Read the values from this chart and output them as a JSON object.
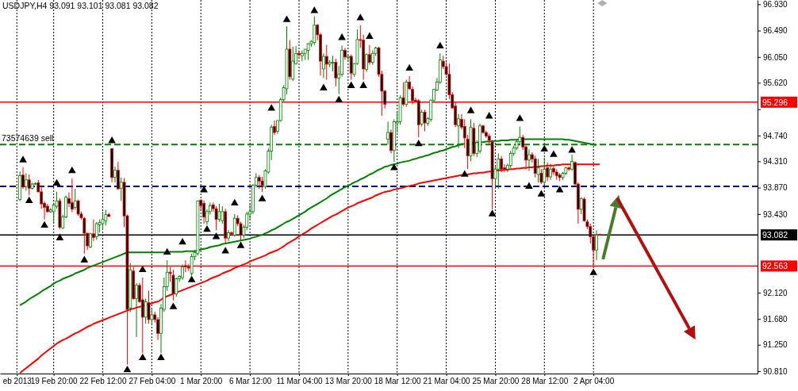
{
  "chart_data": {
    "type": "candlestick",
    "title": "USDJPY,H4  93.091 93.101 93.081 93.082",
    "categories": [
      null,
      null,
      null,
      null,
      null,
      "eb 2013",
      null,
      null,
      null,
      null,
      null,
      null,
      null,
      null,
      null,
      null,
      null,
      "19 Feb 20:00",
      null,
      null,
      null,
      null,
      null,
      null,
      null,
      null,
      null,
      null,
      null,
      null,
      null,
      null,
      null,
      "22 Feb 12:00",
      null,
      null,
      null,
      null,
      null,
      null,
      null,
      null,
      null,
      null,
      null,
      null,
      null,
      null,
      null,
      "27 Feb 04:00",
      null,
      null,
      null,
      null,
      null,
      null,
      null,
      null,
      null,
      null,
      null,
      null,
      null,
      null,
      null,
      "1 Mar 20:00",
      null,
      null,
      null,
      null,
      null,
      null,
      null,
      null,
      null,
      null,
      null,
      null,
      null,
      null,
      null,
      "6 Mar 12:00",
      null,
      null,
      null,
      null,
      null,
      null,
      null,
      null,
      null,
      null,
      null,
      null,
      null,
      null,
      null,
      "11 Mar 04:00",
      null,
      null,
      null,
      null,
      null,
      null,
      null,
      null,
      null,
      null,
      null,
      null,
      null,
      null,
      null,
      "13 Mar 20:00",
      null,
      null,
      null,
      null,
      null,
      null,
      null,
      null,
      null,
      null,
      null,
      null,
      null,
      null,
      null,
      "18 Mar 12:00",
      null,
      null,
      null,
      null,
      null,
      null,
      null,
      null,
      null,
      null,
      null,
      null,
      null,
      null,
      null,
      "21 Mar 04:00",
      null,
      null,
      null,
      null,
      null,
      null,
      null,
      null,
      null,
      null,
      null,
      null,
      null,
      null,
      null,
      "25 Mar 20:00",
      null,
      null,
      null,
      null,
      null,
      null,
      null,
      null,
      null,
      null,
      null,
      null,
      null,
      null,
      null,
      "28 Mar 12:00",
      null,
      null,
      null,
      null,
      null,
      null,
      null,
      null,
      null,
      null,
      null,
      null,
      null,
      null,
      null,
      "2 Apr 04:00",
      null,
      null,
      null,
      null,
      null,
      null,
      null,
      null,
      null,
      null,
      null,
      null,
      null,
      null,
      null,
      null,
      null,
      null,
      null,
      null,
      null,
      null,
      null,
      null,
      null,
      null,
      null,
      null,
      null,
      null,
      null,
      null,
      null,
      null,
      null,
      null,
      null,
      null,
      null,
      null,
      null,
      null,
      null,
      null,
      null,
      null,
      null,
      null,
      null,
      null,
      null,
      null,
      null
    ],
    "ohlc": [
      null,
      null,
      null,
      null,
      null,
      null,
      [
        93.67,
        94.14,
        93.65,
        94.07
      ],
      [
        94.08,
        94.21,
        93.85,
        93.88
      ],
      [
        93.89,
        94.11,
        93.82,
        94.0
      ],
      [
        94.0,
        94.09,
        93.74,
        93.86
      ],
      [
        93.86,
        93.95,
        93.84,
        93.93
      ],
      [
        93.93,
        93.96,
        93.92,
        93.94
      ],
      [
        93.95,
        94.0,
        93.8,
        93.8
      ],
      [
        93.8,
        93.91,
        93.52,
        93.6
      ],
      [
        93.61,
        93.64,
        93.34,
        93.54
      ],
      [
        93.56,
        93.6,
        93.45,
        93.47
      ],
      [
        93.47,
        93.53,
        93.45,
        93.5
      ],
      [
        93.47,
        93.62,
        93.27,
        93.58
      ],
      [
        93.56,
        93.8,
        93.52,
        93.65
      ],
      [
        93.65,
        93.69,
        93.18,
        93.21
      ],
      [
        93.2,
        93.42,
        93.18,
        93.38
      ],
      [
        93.38,
        93.74,
        93.36,
        93.71
      ],
      [
        93.69,
        93.79,
        93.55,
        93.61
      ],
      [
        93.62,
        94.02,
        93.46,
        93.51
      ],
      [
        93.54,
        93.85,
        93.5,
        93.65
      ],
      [
        93.65,
        93.67,
        93.4,
        93.43
      ],
      [
        93.43,
        93.47,
        93.34,
        93.37
      ],
      [
        93.36,
        93.38,
        92.77,
        93.11
      ],
      [
        93.11,
        93.12,
        92.83,
        92.9
      ],
      [
        92.88,
        93.12,
        92.86,
        93.1
      ],
      [
        93.1,
        93.34,
        92.98,
        93.04
      ],
      [
        93.05,
        93.3,
        93.0,
        93.27
      ],
      [
        93.25,
        93.34,
        93.12,
        93.29
      ],
      [
        93.27,
        93.47,
        93.16,
        93.34
      ],
      [
        93.32,
        93.5,
        93.24,
        93.42
      ],
      [
        93.42,
        93.45,
        93.38,
        93.39
      ],
      [
        94.52,
        94.53,
        93.96,
        94.04
      ],
      [
        94.04,
        94.22,
        93.96,
        94.16
      ],
      [
        94.16,
        94.3,
        93.85,
        93.85
      ],
      [
        93.86,
        94.04,
        93.65,
        93.96
      ],
      [
        93.96,
        94.03,
        93.21,
        93.4
      ],
      [
        93.4,
        93.42,
        90.92,
        91.84
      ],
      [
        91.86,
        92.61,
        91.8,
        92.5
      ],
      [
        92.48,
        92.55,
        92.0,
        92.02
      ],
      [
        92.02,
        92.28,
        91.38,
        92.24
      ],
      [
        92.24,
        92.28,
        91.95,
        91.97
      ],
      [
        92.0,
        92.37,
        91.11,
        91.71
      ],
      [
        91.71,
        92.02,
        91.6,
        91.97
      ],
      [
        91.95,
        92.15,
        91.6,
        91.67
      ],
      [
        91.67,
        91.86,
        91.6,
        91.75
      ],
      [
        91.75,
        91.8,
        91.62,
        91.67
      ],
      [
        91.67,
        91.71,
        91.33,
        91.44
      ],
      [
        91.44,
        91.93,
        91.11,
        91.86
      ],
      [
        91.84,
        92.37,
        91.8,
        92.22
      ],
      [
        92.22,
        92.66,
        92.15,
        92.46
      ],
      [
        92.46,
        92.55,
        92.3,
        92.44
      ],
      [
        92.41,
        92.5,
        91.99,
        92.1
      ],
      [
        92.1,
        92.37,
        92.05,
        92.35
      ],
      [
        92.35,
        92.41,
        92.3,
        92.39
      ],
      [
        92.37,
        92.59,
        92.33,
        92.55
      ],
      [
        92.57,
        92.66,
        92.46,
        92.55
      ],
      [
        92.55,
        92.6,
        92.48,
        92.53
      ],
      [
        92.44,
        92.77,
        92.4,
        92.72
      ],
      [
        92.72,
        92.83,
        92.66,
        92.79
      ],
      [
        92.77,
        93.66,
        92.74,
        93.65
      ],
      [
        93.66,
        93.68,
        93.48,
        93.57
      ],
      [
        93.61,
        93.66,
        93.27,
        93.38
      ],
      [
        93.3,
        93.51,
        93.25,
        93.47
      ],
      [
        93.47,
        93.62,
        93.42,
        93.57
      ],
      [
        93.58,
        93.62,
        93.47,
        93.52
      ],
      [
        93.52,
        93.56,
        93.16,
        93.34
      ],
      [
        93.34,
        93.6,
        93.3,
        93.47
      ],
      [
        93.32,
        93.56,
        93.27,
        93.47
      ],
      [
        93.47,
        93.52,
        92.94,
        93.03
      ],
      [
        93.03,
        93.16,
        92.98,
        93.12
      ],
      [
        93.12,
        93.14,
        93.08,
        93.1
      ],
      [
        93.08,
        93.43,
        93.05,
        93.36
      ],
      [
        93.36,
        93.41,
        93.23,
        93.27
      ],
      [
        93.27,
        93.3,
        92.99,
        93.08
      ],
      [
        93.08,
        93.25,
        93.03,
        93.21
      ],
      [
        93.21,
        93.47,
        93.16,
        93.43
      ],
      [
        93.43,
        93.6,
        93.34,
        93.47
      ],
      [
        93.47,
        93.93,
        93.43,
        93.91
      ],
      [
        93.91,
        94.11,
        93.87,
        94.04
      ],
      [
        94.04,
        94.08,
        93.85,
        93.98
      ],
      [
        93.98,
        94.05,
        93.8,
        93.91
      ],
      [
        93.89,
        94.18,
        93.85,
        94.15
      ],
      [
        94.13,
        94.53,
        94.1,
        94.48
      ],
      [
        94.48,
        94.92,
        94.33,
        94.88
      ],
      [
        94.89,
        94.99,
        94.75,
        94.79
      ],
      [
        94.81,
        94.99,
        94.77,
        94.99
      ],
      [
        94.99,
        95.37,
        94.97,
        95.34
      ],
      [
        95.34,
        95.58,
        95.3,
        95.54
      ],
      [
        95.52,
        96.56,
        95.43,
        96.18
      ],
      [
        96.18,
        96.33,
        95.67,
        95.72
      ],
      [
        95.68,
        96.22,
        95.65,
        95.98
      ],
      [
        95.94,
        96.23,
        95.92,
        96.11
      ],
      [
        96.11,
        96.16,
        96.05,
        96.09
      ],
      [
        96.07,
        96.16,
        95.98,
        96.11
      ],
      [
        96.11,
        96.18,
        96.0,
        96.18
      ],
      [
        96.16,
        96.28,
        96.0,
        96.27
      ],
      [
        96.27,
        96.33,
        96.22,
        96.31
      ],
      [
        96.29,
        96.73,
        96.25,
        96.58
      ],
      [
        96.58,
        96.6,
        96.33,
        96.42
      ],
      [
        96.42,
        96.45,
        95.74,
        95.98
      ],
      [
        95.85,
        96.11,
        95.7,
        96.06
      ],
      [
        96.06,
        96.25,
        95.67,
        95.93
      ],
      [
        95.93,
        96.0,
        95.88,
        95.96
      ],
      [
        95.95,
        96.07,
        95.81,
        95.96
      ],
      [
        95.96,
        96.02,
        95.56,
        95.7
      ],
      [
        95.7,
        95.9,
        95.43,
        95.76
      ],
      [
        95.76,
        96.24,
        95.72,
        96.16
      ],
      [
        96.16,
        96.2,
        96.0,
        96.05
      ],
      [
        96.04,
        96.08,
        95.98,
        96.06
      ],
      [
        96.06,
        96.09,
        95.67,
        95.78
      ],
      [
        95.76,
        95.95,
        95.72,
        95.94
      ],
      [
        95.94,
        96.51,
        95.92,
        96.34
      ],
      [
        96.34,
        96.58,
        96.2,
        96.33
      ],
      [
        96.33,
        96.42,
        95.67,
        95.85
      ],
      [
        95.84,
        96.11,
        95.8,
        96.09
      ],
      [
        96.09,
        96.25,
        95.92,
        95.96
      ],
      [
        95.96,
        96.16,
        95.92,
        96.11
      ],
      [
        96.11,
        96.22,
        96.07,
        96.2
      ],
      [
        96.2,
        96.22,
        95.72,
        95.76
      ],
      [
        95.76,
        95.82,
        95.07,
        95.48
      ],
      [
        95.48,
        95.5,
        95.19,
        95.26
      ],
      [
        94.68,
        94.97,
        94.59,
        94.79
      ],
      [
        94.79,
        94.84,
        94.44,
        94.49
      ],
      [
        94.49,
        95.01,
        94.3,
        94.97
      ],
      [
        94.95,
        95.15,
        94.79,
        94.97
      ],
      [
        94.97,
        95.41,
        94.92,
        95.37
      ],
      [
        95.37,
        95.63,
        95.23,
        95.26
      ],
      [
        95.26,
        95.67,
        95.22,
        95.63
      ],
      [
        95.63,
        95.73,
        95.5,
        95.52
      ],
      [
        95.51,
        95.56,
        95.26,
        95.32
      ],
      [
        95.33,
        95.37,
        95.3,
        95.31
      ],
      [
        95.32,
        95.35,
        94.71,
        94.92
      ],
      [
        94.93,
        95.17,
        94.89,
        95.13
      ],
      [
        95.13,
        95.17,
        94.81,
        94.95
      ],
      [
        94.94,
        95.05,
        94.9,
        95.02
      ],
      [
        95.01,
        95.34,
        94.97,
        95.33
      ],
      [
        95.33,
        95.52,
        95.29,
        95.51
      ],
      [
        95.5,
        95.7,
        95.48,
        95.63
      ],
      [
        95.63,
        96.11,
        95.6,
        96.0
      ],
      [
        95.98,
        96.07,
        95.85,
        95.89
      ],
      [
        95.89,
        95.96,
        95.74,
        95.76
      ],
      [
        95.76,
        95.94,
        95.35,
        95.42
      ],
      [
        95.42,
        95.46,
        95.19,
        95.2
      ],
      [
        95.23,
        95.3,
        94.88,
        94.92
      ],
      [
        94.9,
        95.1,
        94.53,
        95.02
      ],
      [
        95.01,
        95.1,
        94.84,
        94.88
      ],
      [
        94.89,
        95.01,
        94.53,
        94.7
      ],
      [
        94.68,
        94.75,
        94.18,
        94.4
      ],
      [
        94.4,
        95.01,
        94.31,
        94.88
      ],
      [
        94.86,
        94.95,
        94.4,
        94.44
      ],
      [
        94.44,
        94.66,
        94.38,
        94.62
      ],
      [
        94.48,
        94.94,
        94.44,
        94.9
      ],
      [
        94.9,
        94.92,
        94.77,
        94.79
      ],
      [
        94.79,
        94.82,
        94.7,
        94.73
      ],
      [
        94.73,
        94.77,
        94.6,
        94.66
      ],
      [
        94.64,
        94.66,
        93.51,
        94.02
      ],
      [
        94.02,
        94.22,
        93.87,
        94.18
      ],
      [
        94.18,
        94.44,
        93.85,
        94.35
      ],
      [
        94.35,
        94.4,
        94.13,
        94.18
      ],
      [
        94.2,
        94.26,
        94.13,
        94.18
      ],
      [
        94.18,
        94.27,
        94.13,
        94.24
      ],
      [
        94.24,
        94.48,
        94.2,
        94.44
      ],
      [
        94.44,
        94.57,
        94.4,
        94.53
      ],
      [
        94.53,
        94.66,
        94.5,
        94.64
      ],
      [
        94.64,
        94.89,
        94.6,
        94.71
      ],
      [
        94.71,
        94.75,
        94.5,
        94.55
      ],
      [
        94.55,
        94.57,
        94.18,
        94.33
      ],
      [
        94.33,
        94.51,
        94.15,
        94.42
      ],
      [
        94.42,
        94.46,
        94.29,
        94.35
      ],
      [
        94.35,
        94.4,
        94.04,
        94.11
      ],
      [
        94.09,
        94.35,
        93.96,
        94.2
      ],
      [
        94.11,
        94.18,
        93.93,
        93.96
      ],
      [
        93.96,
        94.37,
        93.91,
        94.18
      ],
      [
        94.2,
        94.29,
        93.98,
        94.05
      ],
      [
        94.05,
        94.27,
        94.0,
        94.18
      ],
      [
        94.19,
        94.22,
        94.08,
        94.13
      ],
      [
        94.13,
        94.18,
        94.0,
        94.07
      ],
      [
        94.08,
        94.11,
        93.98,
        94.04
      ],
      [
        94.04,
        94.13,
        94.0,
        94.11
      ],
      [
        94.11,
        94.22,
        94.08,
        94.2
      ],
      [
        94.2,
        94.22,
        94.15,
        94.18
      ],
      [
        94.18,
        94.42,
        94.15,
        94.31
      ],
      [
        94.29,
        94.31,
        93.91,
        93.93
      ],
      [
        93.93,
        93.96,
        93.27,
        93.51
      ],
      [
        93.51,
        93.71,
        93.43,
        93.69
      ],
      [
        93.68,
        93.71,
        93.3,
        93.32
      ],
      [
        93.3,
        93.34,
        93.18,
        93.22
      ],
      [
        93.22,
        93.27,
        92.94,
        93.05
      ],
      [
        93.05,
        93.08,
        92.57,
        92.83
      ],
      [
        92.83,
        93.16,
        92.66,
        93.08
      ],
      [
        93.091,
        93.101,
        93.081,
        93.082
      ],
      null,
      null,
      null,
      null,
      null,
      null,
      null,
      null,
      null,
      null,
      null,
      null,
      null,
      null,
      null,
      null,
      null,
      null,
      null,
      null,
      null,
      null,
      null,
      null,
      null,
      null,
      null,
      null,
      null,
      null,
      null,
      null,
      null,
      null,
      null,
      null,
      null,
      null,
      null,
      null,
      null,
      null,
      null,
      null,
      null,
      null,
      null,
      null,
      null,
      null,
      null
    ],
    "ylim": [
      90.77,
      97.0
    ],
    "yticks": [
      {
        "value": 96.93,
        "label": "96.930"
      },
      {
        "value": 96.49,
        "label": "96.490"
      },
      {
        "value": 96.05,
        "label": "96.050"
      },
      {
        "value": 95.62,
        "label": "95.620"
      },
      {
        "value": 95.18,
        "label": null
      },
      {
        "value": 94.74,
        "label": "94.740"
      },
      {
        "value": 94.31,
        "label": "94.310"
      },
      {
        "value": 93.87,
        "label": "93.870"
      },
      {
        "value": 93.43,
        "label": "93.430"
      },
      {
        "value": 92.12,
        "label": "92.120"
      },
      {
        "value": 91.68,
        "label": "91.680"
      },
      {
        "value": 91.25,
        "label": "91.250"
      },
      {
        "value": 90.81,
        "label": "90.810"
      }
    ],
    "grid": "x",
    "series": [
      {
        "type": "line",
        "color": "#008000",
        "values": [
          null,
          null,
          null,
          null,
          null,
          null,
          91.91,
          91.94,
          91.97,
          92.01,
          92.04,
          92.07,
          92.1,
          92.14,
          92.17,
          92.2,
          92.23,
          92.27,
          92.3,
          92.32,
          92.35,
          92.37,
          92.39,
          92.41,
          92.44,
          92.46,
          92.48,
          92.5,
          92.53,
          92.55,
          92.57,
          92.59,
          92.61,
          92.63,
          92.65,
          92.67,
          92.69,
          92.71,
          92.73,
          92.75,
          92.77,
          92.79,
          92.79,
          92.79,
          92.79,
          92.79,
          92.79,
          92.79,
          92.79,
          92.79,
          92.79,
          92.79,
          92.79,
          92.79,
          92.79,
          92.8,
          92.8,
          92.8,
          92.8,
          92.8,
          92.81,
          92.81,
          92.81,
          92.81,
          92.82,
          92.84,
          92.85,
          92.86,
          92.88,
          92.89,
          92.9,
          92.91,
          92.93,
          92.94,
          92.95,
          92.96,
          92.97,
          92.98,
          92.99,
          93.0,
          93.01,
          93.02,
          93.04,
          93.05,
          93.07,
          93.08,
          93.11,
          93.13,
          93.16,
          93.18,
          93.21,
          93.24,
          93.27,
          93.3,
          93.32,
          93.35,
          93.38,
          93.41,
          93.44,
          93.47,
          93.51,
          93.54,
          93.57,
          93.6,
          93.63,
          93.66,
          93.69,
          93.73,
          93.76,
          93.79,
          93.82,
          93.85,
          93.88,
          93.9,
          93.93,
          93.96,
          93.98,
          94.01,
          94.03,
          94.06,
          94.09,
          94.11,
          94.14,
          94.17,
          94.19,
          94.22,
          94.23,
          94.25,
          94.26,
          94.27,
          94.29,
          94.3,
          94.31,
          94.32,
          94.34,
          94.35,
          94.37,
          94.38,
          94.4,
          94.41,
          94.43,
          94.45,
          94.46,
          94.48,
          94.49,
          94.51,
          94.53,
          94.55,
          94.56,
          94.58,
          94.6,
          94.6,
          null,
          94.61,
          94.62,
          94.62,
          94.63,
          94.63,
          94.64,
          94.64,
          94.65,
          94.65,
          94.65,
          94.66,
          94.66,
          94.66,
          94.67,
          94.67,
          94.67,
          94.68,
          94.68,
          94.68,
          94.68,
          94.68,
          94.68,
          94.68,
          94.68,
          94.68,
          94.68,
          94.68,
          94.68,
          94.68,
          94.68,
          94.68,
          94.67,
          94.67,
          94.66,
          94.65,
          94.64,
          94.63,
          94.62,
          94.61,
          94.6,
          94.59,
          94.58,
          null,
          null,
          null,
          null,
          null,
          null,
          null,
          null,
          null,
          null,
          null,
          null,
          null,
          null,
          null,
          null,
          null,
          null,
          null,
          null,
          null,
          null,
          null,
          null,
          null,
          null,
          null,
          null,
          null,
          null,
          null,
          null,
          null,
          null,
          null,
          null,
          null,
          null,
          null,
          null,
          null,
          null,
          null,
          null,
          null,
          null,
          null,
          null,
          null,
          null,
          null,
          null
        ]
      },
      {
        "type": "line",
        "color": "#ff0000",
        "values": [
          null,
          null,
          null,
          null,
          null,
          null,
          90.78,
          90.82,
          90.86,
          90.9,
          90.94,
          90.98,
          91.02,
          91.07,
          91.11,
          91.15,
          91.19,
          91.23,
          91.27,
          91.3,
          91.33,
          91.35,
          91.38,
          91.41,
          91.44,
          91.46,
          91.49,
          91.52,
          91.55,
          91.57,
          91.6,
          91.62,
          91.64,
          91.66,
          91.68,
          91.7,
          91.72,
          91.74,
          91.76,
          91.78,
          91.8,
          91.82,
          91.84,
          91.85,
          91.87,
          91.88,
          91.9,
          91.91,
          91.93,
          91.94,
          91.96,
          91.97,
          92.0,
          92.04,
          92.06,
          92.08,
          92.1,
          92.12,
          92.14,
          92.16,
          92.18,
          92.2,
          92.22,
          92.24,
          92.26,
          92.28,
          92.3,
          92.32,
          92.35,
          92.37,
          92.39,
          92.41,
          92.44,
          92.46,
          92.48,
          92.5,
          92.53,
          92.55,
          92.57,
          92.59,
          92.61,
          92.64,
          92.66,
          92.68,
          92.7,
          92.72,
          92.74,
          92.77,
          92.79,
          92.81,
          92.83,
          92.86,
          92.89,
          92.93,
          92.96,
          92.99,
          93.02,
          93.06,
          93.09,
          93.12,
          93.15,
          93.19,
          93.22,
          93.25,
          93.28,
          93.31,
          93.34,
          93.37,
          93.4,
          93.42,
          93.45,
          93.48,
          93.51,
          93.54,
          93.56,
          93.58,
          93.61,
          93.63,
          93.65,
          93.67,
          93.69,
          93.71,
          93.74,
          93.76,
          93.78,
          93.8,
          93.81,
          93.82,
          93.84,
          93.85,
          93.86,
          93.87,
          93.89,
          93.9,
          93.91,
          93.92,
          93.94,
          93.95,
          93.96,
          93.97,
          93.98,
          93.99,
          94.0,
          94.01,
          94.02,
          94.03,
          94.04,
          94.05,
          94.06,
          94.07,
          94.08,
          94.09,
          94.09,
          94.1,
          94.11,
          94.11,
          94.12,
          94.12,
          94.13,
          94.14,
          94.14,
          94.15,
          94.16,
          94.16,
          94.17,
          94.17,
          94.18,
          94.18,
          94.19,
          94.19,
          94.2,
          94.2,
          94.21,
          94.21,
          94.22,
          94.22,
          94.23,
          94.23,
          94.24,
          94.24,
          94.24,
          94.25,
          94.25,
          94.26,
          94.26,
          94.26,
          94.26,
          94.26,
          94.26,
          94.26,
          94.26,
          94.26,
          94.26,
          94.26,
          94.26,
          94.26,
          null,
          null,
          null,
          null,
          null,
          null,
          null,
          null,
          null,
          null,
          null,
          null,
          null,
          null,
          null,
          null,
          null,
          null,
          null,
          null,
          null,
          null,
          null,
          null,
          null,
          null,
          null,
          null,
          null,
          null,
          null,
          null,
          null,
          null,
          null,
          null,
          null,
          null,
          null,
          null,
          null,
          null,
          null,
          null,
          null,
          null,
          null,
          null,
          null,
          null,
          null
        ]
      },
      {
        "type": "scatter",
        "marker": "triangle",
        "color": "#000000",
        "values": [
          null,
          null,
          null,
          null,
          null,
          null,
          null,
          94.33,
          null,
          null,
          null,
          null,
          null,
          null,
          null,
          null,
          null,
          null,
          93.94,
          null,
          null,
          null,
          null,
          94.15,
          null,
          null,
          null,
          null,
          null,
          null,
          null,
          null,
          null,
          null,
          null,
          null,
          94.65,
          null,
          null,
          null,
          null,
          null,
          null,
          null,
          null,
          null,
          92.5,
          null,
          null,
          null,
          null,
          null,
          null,
          null,
          92.79,
          null,
          null,
          null,
          null,
          92.96,
          null,
          null,
          null,
          null,
          null,
          null,
          93.83,
          null,
          null,
          null,
          null,
          null,
          null,
          null,
          null,
          null,
          93.61,
          null,
          null,
          null,
          null,
          null,
          null,
          null,
          null,
          null,
          null,
          null,
          95.19,
          null,
          null,
          null,
          null,
          96.67,
          null,
          null,
          null,
          null,
          null,
          null,
          null,
          null,
          96.82,
          null,
          null,
          null,
          null,
          null,
          null,
          null,
          null,
          96.37,
          null,
          null,
          null,
          null,
          null,
          96.7,
          null,
          null,
          96.39,
          null,
          null,
          null,
          null,
          null,
          null,
          null,
          null,
          null,
          null,
          null,
          null,
          95.86,
          null,
          null,
          null,
          null,
          null,
          null,
          null,
          null,
          null,
          96.23,
          null,
          null,
          null,
          null,
          null,
          null,
          null,
          null,
          null,
          95.15,
          null,
          null,
          null,
          null,
          null,
          95.06,
          null,
          null,
          null,
          null,
          null,
          null,
          null,
          null,
          null,
          95.02,
          null,
          null,
          null,
          null,
          null,
          null,
          null,
          94.51,
          null,
          null,
          94.42,
          null,
          null,
          null,
          null,
          null,
          94.49,
          null,
          null,
          null,
          null,
          null,
          null,
          null,
          null,
          null,
          null,
          null,
          null,
          null,
          null,
          null,
          null,
          null,
          null,
          null,
          null,
          null,
          null,
          null,
          null,
          null,
          null,
          null,
          null,
          null,
          null,
          null,
          null,
          null,
          null,
          null,
          null,
          null,
          null,
          null,
          null,
          null,
          null,
          null,
          null,
          null,
          null,
          null,
          null,
          null,
          null,
          null,
          null,
          null,
          null,
          null,
          null,
          null,
          null,
          null,
          null
        ]
      },
      {
        "type": "scatter",
        "marker": "triangle",
        "color": "#000000",
        "values": [
          null,
          null,
          null,
          null,
          null,
          null,
          null,
          null,
          null,
          93.65,
          null,
          null,
          null,
          null,
          93.24,
          null,
          null,
          null,
          null,
          93.03,
          null,
          null,
          null,
          null,
          null,
          null,
          null,
          92.66,
          null,
          null,
          null,
          null,
          null,
          null,
          null,
          null,
          null,
          null,
          null,
          null,
          null,
          90.83,
          null,
          null,
          null,
          null,
          91.03,
          null,
          null,
          null,
          null,
          null,
          91.03,
          null,
          null,
          null,
          91.88,
          null,
          null,
          null,
          null,
          null,
          92.33,
          null,
          null,
          null,
          null,
          93.17,
          null,
          null,
          93.05,
          null,
          null,
          92.81,
          null,
          null,
          null,
          null,
          92.9,
          null,
          null,
          null,
          null,
          null,
          null,
          93.68,
          null,
          null,
          null,
          null,
          null,
          null,
          null,
          null,
          null,
          null,
          null,
          null,
          null,
          null,
          null,
          null,
          null,
          null,
          null,
          95.53,
          null,
          null,
          null,
          null,
          95.33,
          null,
          null,
          null,
          95.57,
          null,
          null,
          null,
          95.57,
          null,
          null,
          null,
          null,
          null,
          null,
          null,
          null,
          null,
          94.2,
          null,
          null,
          null,
          null,
          null,
          null,
          null,
          94.6,
          null,
          null,
          null,
          null,
          null,
          null,
          null,
          null,
          null,
          null,
          null,
          null,
          null,
          null,
          94.09,
          null,
          null,
          null,
          null,
          null,
          null,
          null,
          null,
          93.43,
          null,
          null,
          null,
          null,
          null,
          null,
          null,
          null,
          null,
          null,
          null,
          93.89,
          null,
          null,
          null,
          93.76,
          null,
          null,
          null,
          null,
          null,
          93.83,
          null,
          null,
          null,
          null,
          null,
          null,
          null,
          null,
          null,
          null,
          92.45,
          null,
          null,
          null,
          null,
          null,
          null,
          null,
          null,
          null,
          null,
          null,
          null,
          null,
          null,
          null,
          null,
          null,
          null,
          null,
          null,
          null,
          null,
          null,
          null,
          null,
          null,
          null,
          null,
          null,
          null,
          null,
          null,
          null,
          null,
          null,
          null,
          null,
          null,
          null,
          null,
          null,
          null,
          null,
          null,
          null,
          null,
          null,
          null,
          null,
          null,
          null,
          null,
          null
        ]
      }
    ],
    "ref_lines": [
      {
        "axis": "y",
        "value": 95.296,
        "label": "95.296",
        "color": "#ff0000",
        "line_style": "solid"
      },
      {
        "axis": "y",
        "value": 92.563,
        "label": "92.563",
        "color": "#ff0000",
        "line_style": "solid"
      },
      {
        "axis": "y",
        "value": 93.082,
        "label": "93.082",
        "color": "#000000",
        "line_style": "solid"
      },
      {
        "axis": "y",
        "value": 94.59,
        "label": "73574639 sell",
        "color": "#008000",
        "line_style": "dashed"
      },
      {
        "axis": "y",
        "value": 93.89,
        "color": "#000080",
        "line_style": "dashed"
      }
    ]
  }
}
